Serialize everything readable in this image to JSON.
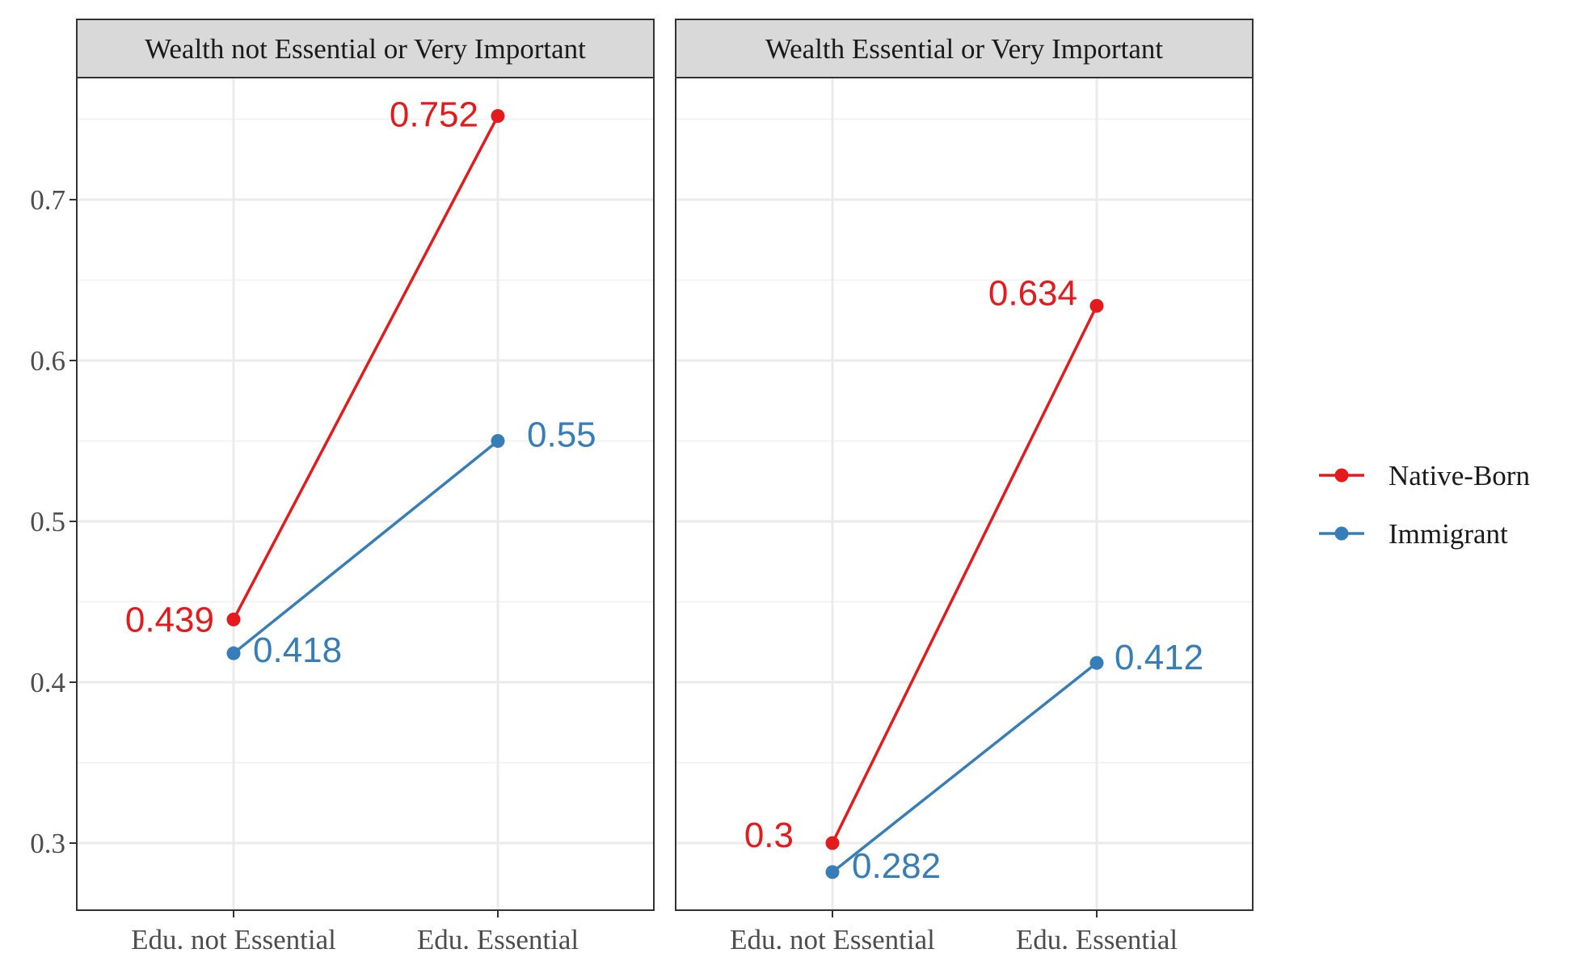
{
  "chart_data": {
    "type": "line",
    "x_categories": [
      "Edu. not Essential",
      "Edu. Essential"
    ],
    "y_ticks": [
      0.3,
      0.4,
      0.5,
      0.6,
      0.7
    ],
    "y_tick_labels": [
      "0.3",
      "0.4",
      "0.5",
      "0.6",
      "0.7"
    ],
    "ylim": [
      0.26,
      0.775
    ],
    "grid": true,
    "legend_position": "right",
    "legend": [
      {
        "name": "Native-Born",
        "color": "#e41a1c"
      },
      {
        "name": "Immigrant",
        "color": "#377eb8"
      }
    ],
    "panels": [
      {
        "title": "Wealth not Essential or Very Important",
        "series": [
          {
            "name": "Native-Born",
            "color": "#e41a1c",
            "values": [
              0.439,
              0.752
            ],
            "labels": [
              "0.439",
              "0.752"
            ]
          },
          {
            "name": "Immigrant",
            "color": "#377eb8",
            "values": [
              0.418,
              0.55
            ],
            "labels": [
              "0.418",
              "0.55"
            ]
          }
        ]
      },
      {
        "title": "Wealth Essential or Very Important",
        "series": [
          {
            "name": "Native-Born",
            "color": "#e41a1c",
            "values": [
              0.3,
              0.634
            ],
            "labels": [
              "0.3",
              "0.634"
            ]
          },
          {
            "name": "Immigrant",
            "color": "#377eb8",
            "values": [
              0.282,
              0.412
            ],
            "labels": [
              "0.282",
              "0.412"
            ]
          }
        ]
      }
    ]
  }
}
